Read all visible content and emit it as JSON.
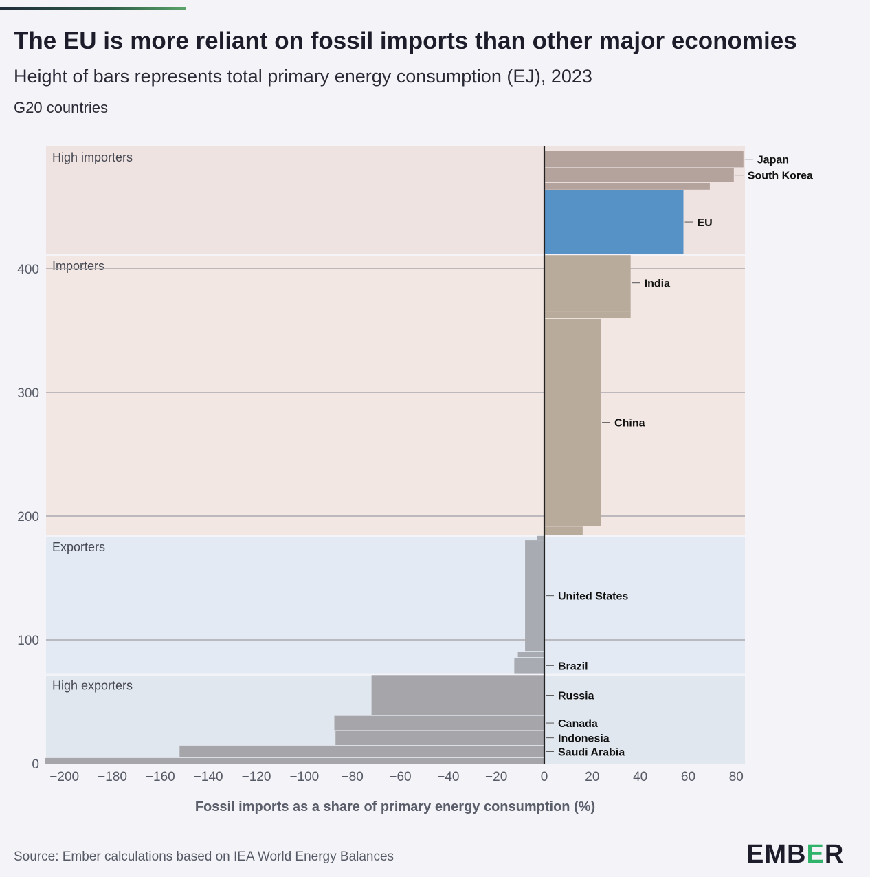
{
  "header": {
    "title": "The EU is more reliant on fossil imports than other major economies",
    "subtitle": "Height of bars represents total primary energy consumption (EJ), 2023",
    "subtitle2": "G20 countries"
  },
  "footer": {
    "source": "Source: Ember calculations based on IEA World Energy Balances",
    "logo_prefix": "EMB",
    "logo_mid": "E",
    "logo_suffix": "R"
  },
  "colors": {
    "eu_bar": "#5792c7",
    "importer_bar": "#b8ab9c",
    "high_importer_bar": "#b4a29c",
    "exporter_bar": "#a8acb2",
    "high_exporter_bar": "#a6a6aa",
    "band_high_importers": "#efe3e1",
    "band_importers": "#f2e7e2",
    "band_exporters": "#e3eaf3",
    "band_high_exporters": "#e1e7ef",
    "gridline": "#a9a9b0",
    "axis_line": "#222222"
  },
  "chart_data": {
    "type": "bar",
    "orientation": "variable-height horizontal bars (marimekko-style)",
    "xlabel": "Fossil imports as a share of primary energy consumption (%)",
    "ylabel": "",
    "xlim": [
      -208,
      84
    ],
    "ylim": [
      0,
      495
    ],
    "x_ticks": [
      -200,
      -180,
      -160,
      -140,
      -120,
      -100,
      -80,
      -60,
      -40,
      -20,
      0,
      20,
      40,
      60,
      80
    ],
    "y_ticks": [
      0,
      100,
      200,
      300,
      400
    ],
    "grid": "horizontal",
    "bands": [
      {
        "label": "High exporters",
        "y0": 0,
        "y1": 72,
        "color_key": "band_high_exporters"
      },
      {
        "label": "Exporters",
        "y0": 73,
        "y1": 184,
        "color_key": "band_exporters"
      },
      {
        "label": "Importers",
        "y0": 185,
        "y1": 411,
        "color_key": "band_importers"
      },
      {
        "label": "High importers",
        "y0": 412,
        "y1": 498,
        "color_key": "band_high_importers"
      }
    ],
    "bars": [
      {
        "name": "",
        "import_share": -208,
        "y0": 0,
        "y1": 4.5,
        "color_key": "high_exporter_bar"
      },
      {
        "name": "Saudi Arabia",
        "import_share": -152,
        "y0": 5,
        "y1": 14.5,
        "color_key": "high_exporter_bar",
        "show_label": true
      },
      {
        "name": "Indonesia",
        "import_share": -87,
        "y0": 15,
        "y1": 26.5,
        "color_key": "high_exporter_bar",
        "show_label": true
      },
      {
        "name": "Canada",
        "import_share": -87.5,
        "y0": 27,
        "y1": 38.5,
        "color_key": "high_exporter_bar",
        "show_label": true
      },
      {
        "name": "Russia",
        "import_share": -72,
        "y0": 39,
        "y1": 71.5,
        "color_key": "high_exporter_bar",
        "show_label": true
      },
      {
        "name": "Brazil",
        "import_share": -12.5,
        "y0": 73,
        "y1": 85.5,
        "color_key": "exporter_bar",
        "show_label": true
      },
      {
        "name": "",
        "import_share": -11,
        "y0": 86,
        "y1": 90.5,
        "color_key": "exporter_bar"
      },
      {
        "name": "United States",
        "import_share": -8,
        "y0": 91,
        "y1": 180.5,
        "color_key": "exporter_bar",
        "show_label": true
      },
      {
        "name": "",
        "import_share": -3,
        "y0": 181,
        "y1": 184,
        "color_key": "exporter_bar"
      },
      {
        "name": "",
        "import_share": 16,
        "y0": 185,
        "y1": 191.5,
        "color_key": "importer_bar"
      },
      {
        "name": "China",
        "import_share": 23.5,
        "y0": 192,
        "y1": 359.5,
        "color_key": "importer_bar",
        "show_label": true
      },
      {
        "name": "",
        "import_share": 36,
        "y0": 360,
        "y1": 365.5,
        "color_key": "importer_bar"
      },
      {
        "name": "India",
        "import_share": 36,
        "y0": 366,
        "y1": 411,
        "color_key": "importer_bar",
        "show_label": true
      },
      {
        "name": "EU",
        "import_share": 58,
        "y0": 412,
        "y1": 463.5,
        "color_key": "eu_bar",
        "show_label": true
      },
      {
        "name": "",
        "import_share": 69,
        "y0": 464,
        "y1": 469.5,
        "color_key": "high_importer_bar"
      },
      {
        "name": "South Korea",
        "import_share": 79,
        "y0": 470,
        "y1": 481.5,
        "color_key": "high_importer_bar",
        "show_label": true
      },
      {
        "name": "Japan",
        "import_share": 83,
        "y0": 482,
        "y1": 495,
        "color_key": "high_importer_bar",
        "show_label": true
      }
    ]
  }
}
